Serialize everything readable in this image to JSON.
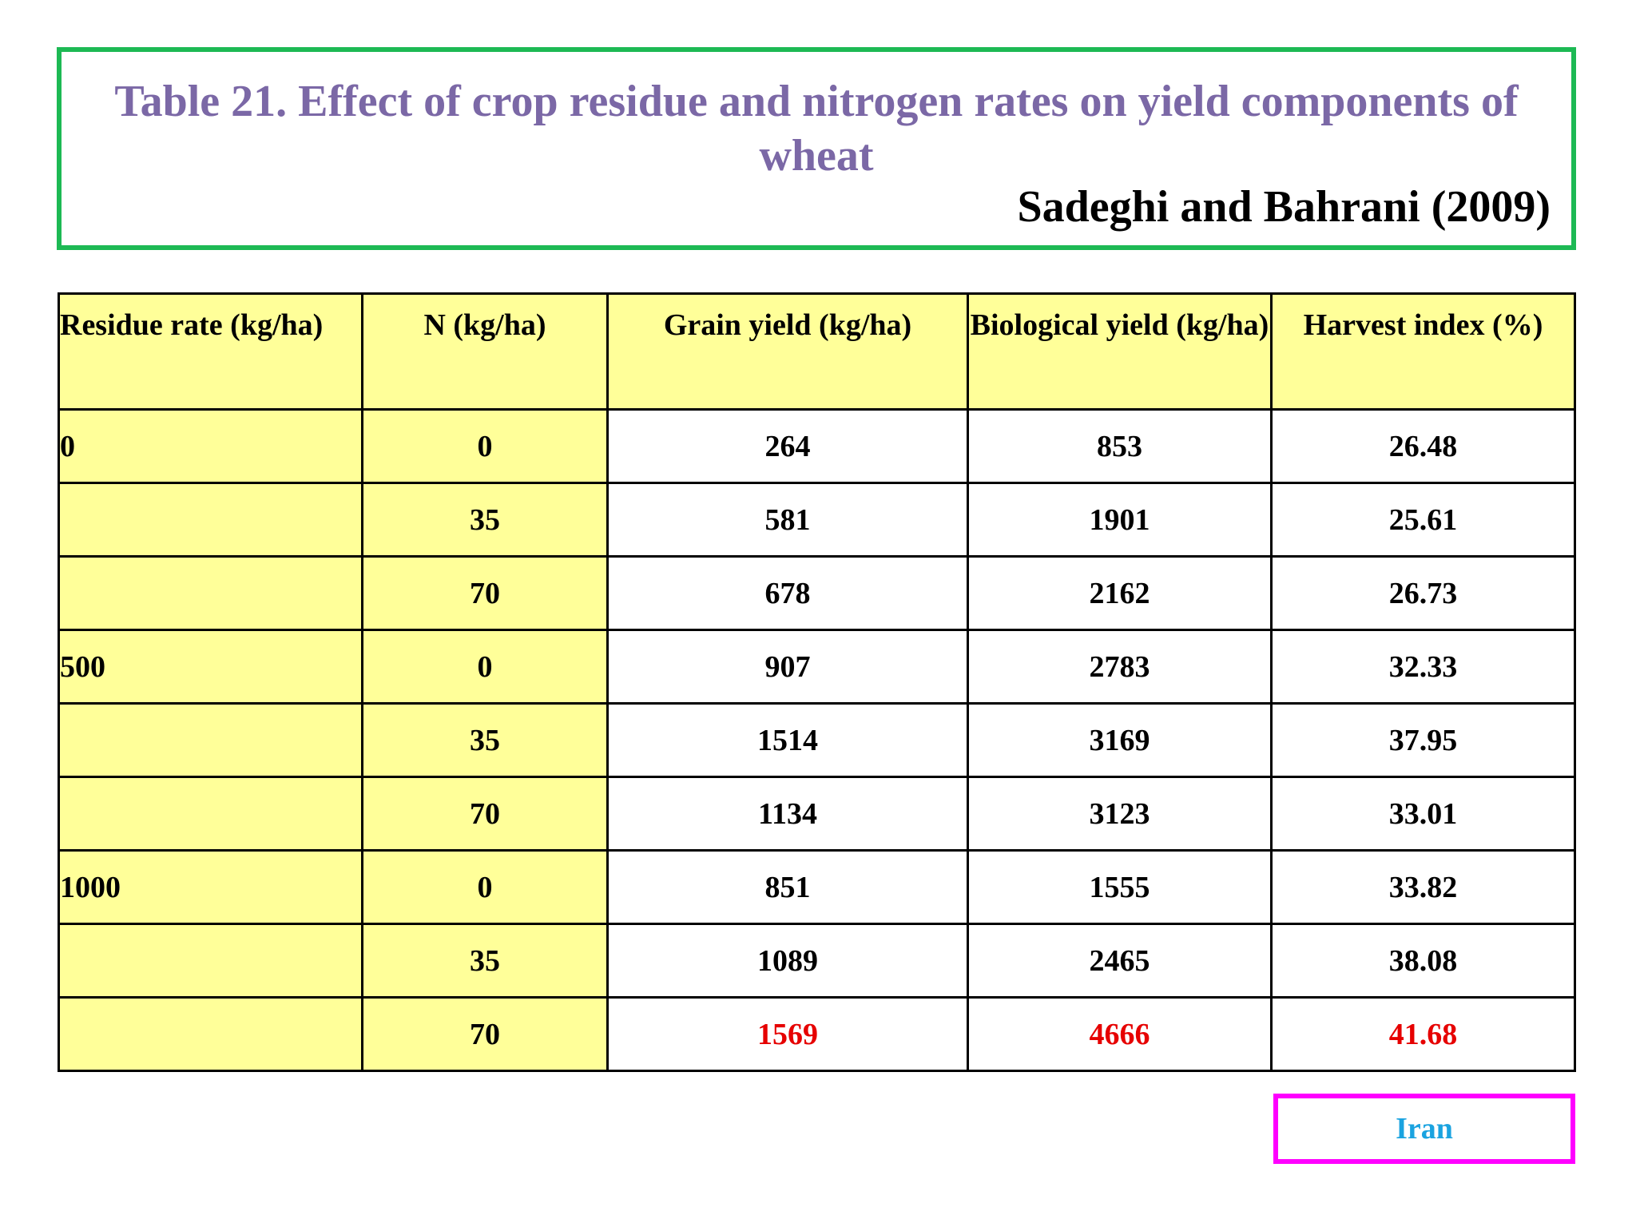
{
  "title": {
    "text": "Table 21. Effect of crop residue and nitrogen rates on yield components of wheat",
    "citation": "Sadeghi and Bahrani (2009)"
  },
  "table": {
    "headers": [
      "Residue rate (kg/ha)",
      "N (kg/ha)",
      "Grain yield (kg/ha)",
      "Biological yield (kg/ha)",
      "Harvest index (%)"
    ],
    "rows": [
      {
        "residue": "0",
        "n": "0",
        "grain": "264",
        "bio": "853",
        "hi": "26.48"
      },
      {
        "residue": "",
        "n": "35",
        "grain": "581",
        "bio": "1901",
        "hi": "25.61"
      },
      {
        "residue": "",
        "n": "70",
        "grain": "678",
        "bio": "2162",
        "hi": "26.73"
      },
      {
        "residue": "500",
        "n": "0",
        "grain": "907",
        "bio": "2783",
        "hi": "32.33"
      },
      {
        "residue": "",
        "n": "35",
        "grain": "1514",
        "bio": "3169",
        "hi": "37.95"
      },
      {
        "residue": "",
        "n": "70",
        "grain": "1134",
        "bio": "3123",
        "hi": "33.01"
      },
      {
        "residue": "1000",
        "n": "0",
        "grain": "851",
        "bio": "1555",
        "hi": "33.82"
      },
      {
        "residue": "",
        "n": "35",
        "grain": "1089",
        "bio": "2465",
        "hi": "38.08"
      },
      {
        "residue": "",
        "n": "70",
        "grain": "1569",
        "bio": "4666",
        "hi": "41.68",
        "highlight": true
      }
    ]
  },
  "footer": {
    "country_label": "Iran"
  },
  "colors": {
    "title": "#7b68a6",
    "title_border": "#1db954",
    "header_fill": "#ffff99",
    "highlight_text": "#e60000",
    "country_border": "#ff00ff",
    "country_text": "#1aa3e0"
  }
}
